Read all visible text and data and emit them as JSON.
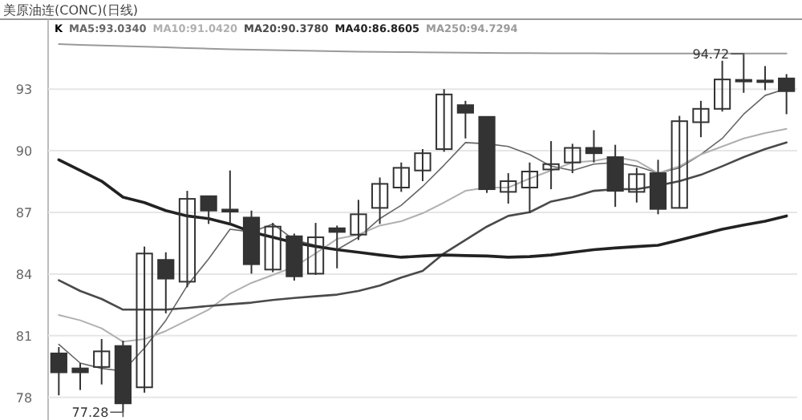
{
  "chart_data": {
    "type": "candlestick",
    "title": "美原油连(CONC)(日线)",
    "legend_title": "K",
    "legend": "top left",
    "grid": "y",
    "tick_labels": "y",
    "categories": [
      null,
      null,
      null,
      null,
      null,
      null,
      null,
      null,
      null,
      null,
      null,
      null,
      null,
      null,
      null,
      null,
      null,
      null,
      null,
      null,
      null,
      null,
      null,
      null,
      null,
      null,
      null,
      null,
      null,
      null,
      null,
      null,
      null,
      null,
      null
    ],
    "ylim": [
      76.9,
      96.4
    ],
    "yticks": [
      78,
      81,
      84,
      87,
      90,
      93
    ],
    "ohlc": [
      [
        80.14,
        80.45,
        78.1,
        79.22
      ],
      [
        79.41,
        79.67,
        78.36,
        79.22
      ],
      [
        79.48,
        80.84,
        78.63,
        80.24
      ],
      [
        80.5,
        80.76,
        77.28,
        77.71
      ],
      [
        78.49,
        85.34,
        78.23,
        85.0
      ],
      [
        84.69,
        85.06,
        82.09,
        83.78
      ],
      [
        83.63,
        88.05,
        83.36,
        87.66
      ],
      [
        87.79,
        87.79,
        86.44,
        87.09
      ],
      [
        87.14,
        89.04,
        86.44,
        87.04
      ],
      [
        86.75,
        87.09,
        84.02,
        84.48
      ],
      [
        84.22,
        86.49,
        84.09,
        86.31
      ],
      [
        85.84,
        85.97,
        83.68,
        83.89
      ],
      [
        84.02,
        86.49,
        83.96,
        85.79
      ],
      [
        86.23,
        86.36,
        84.28,
        86.05
      ],
      [
        85.92,
        87.61,
        85.66,
        86.91
      ],
      [
        87.22,
        88.7,
        86.44,
        88.39
      ],
      [
        88.21,
        89.43,
        88.0,
        89.17
      ],
      [
        89.04,
        90.08,
        88.52,
        89.88
      ],
      [
        90.08,
        93.0,
        89.95,
        92.74
      ],
      [
        92.22,
        92.43,
        90.6,
        91.85
      ],
      [
        91.65,
        91.65,
        87.95,
        88.13
      ],
      [
        88.0,
        88.91,
        87.43,
        88.52
      ],
      [
        88.21,
        89.43,
        86.96,
        88.99
      ],
      [
        89.09,
        90.47,
        88.13,
        89.35
      ],
      [
        89.43,
        90.34,
        88.91,
        90.14
      ],
      [
        90.14,
        91.0,
        89.43,
        89.88
      ],
      [
        89.69,
        90.29,
        87.27,
        88.05
      ],
      [
        88.0,
        89.17,
        87.48,
        88.86
      ],
      [
        88.91,
        89.56,
        86.91,
        87.17
      ],
      [
        87.22,
        91.7,
        87.22,
        91.44
      ],
      [
        91.39,
        92.43,
        90.66,
        92.04
      ],
      [
        92.04,
        94.38,
        91.91,
        93.47
      ],
      [
        93.45,
        94.72,
        92.82,
        93.4
      ],
      [
        93.42,
        94.12,
        92.95,
        93.38
      ],
      [
        93.52,
        93.73,
        91.78,
        92.9
      ]
    ],
    "series": [
      {
        "name": "MA5:93.0340",
        "type": "line",
        "color": "#666666",
        "values": [
          80.58,
          79.67,
          79.41,
          79.28,
          80.4,
          81.75,
          83.44,
          84.74,
          86.18,
          86.05,
          86.44,
          85.66,
          85.4,
          85.19,
          85.79,
          86.7,
          87.35,
          88.26,
          89.3,
          90.4,
          90.34,
          90.21,
          89.82,
          89.25,
          89.04,
          89.35,
          89.43,
          89.25,
          88.91,
          89.17,
          89.82,
          90.6,
          91.78,
          92.69,
          93.03
        ]
      },
      {
        "name": "MA10:91.0420",
        "type": "line",
        "color": "#b0b0b0",
        "values": [
          82.01,
          81.75,
          81.36,
          80.71,
          80.84,
          81.23,
          81.75,
          82.27,
          83.05,
          83.57,
          83.96,
          84.35,
          85.01,
          85.71,
          85.92,
          86.36,
          86.57,
          86.96,
          87.48,
          88.05,
          88.21,
          88.21,
          88.65,
          89.04,
          89.43,
          89.51,
          89.69,
          89.51,
          88.91,
          89.25,
          89.82,
          90.21,
          90.6,
          90.86,
          91.07
        ]
      },
      {
        "name": "MA20:90.3780",
        "type": "line",
        "color": "#4a4a4a",
        "values": [
          83.7,
          83.18,
          82.79,
          82.27,
          82.27,
          82.27,
          82.35,
          82.45,
          82.53,
          82.61,
          82.74,
          82.84,
          82.92,
          83.0,
          83.18,
          83.44,
          83.83,
          84.15,
          85.01,
          85.66,
          86.31,
          86.83,
          87.01,
          87.53,
          87.74,
          88.05,
          88.13,
          88.13,
          88.31,
          88.52,
          88.83,
          89.25,
          89.69,
          90.08,
          90.4
        ]
      },
      {
        "name": "MA40:86.8605",
        "type": "line",
        "color": "#222222",
        "values": [
          89.56,
          89.04,
          88.52,
          87.74,
          87.48,
          87.09,
          86.83,
          86.7,
          86.44,
          86.05,
          85.79,
          85.53,
          85.34,
          85.19,
          85.06,
          84.93,
          84.82,
          84.88,
          84.93,
          84.9,
          84.88,
          84.82,
          84.85,
          84.93,
          85.06,
          85.19,
          85.27,
          85.34,
          85.4,
          85.66,
          85.92,
          86.18,
          86.39,
          86.57,
          86.83
        ]
      },
      {
        "name": "MA250:94.7294",
        "type": "line",
        "color": "#9a9a9a",
        "values": [
          95.19,
          95.15,
          95.12,
          95.09,
          95.06,
          95.03,
          95.0,
          94.97,
          94.94,
          94.92,
          94.9,
          94.88,
          94.86,
          94.84,
          94.82,
          94.81,
          94.8,
          94.79,
          94.78,
          94.77,
          94.76,
          94.75,
          94.75,
          94.74,
          94.74,
          94.74,
          94.73,
          94.73,
          94.73,
          94.73,
          94.73,
          94.73,
          94.73,
          94.73,
          94.73
        ]
      }
    ],
    "annotations": [
      "94.72",
      "77.28"
    ]
  }
}
